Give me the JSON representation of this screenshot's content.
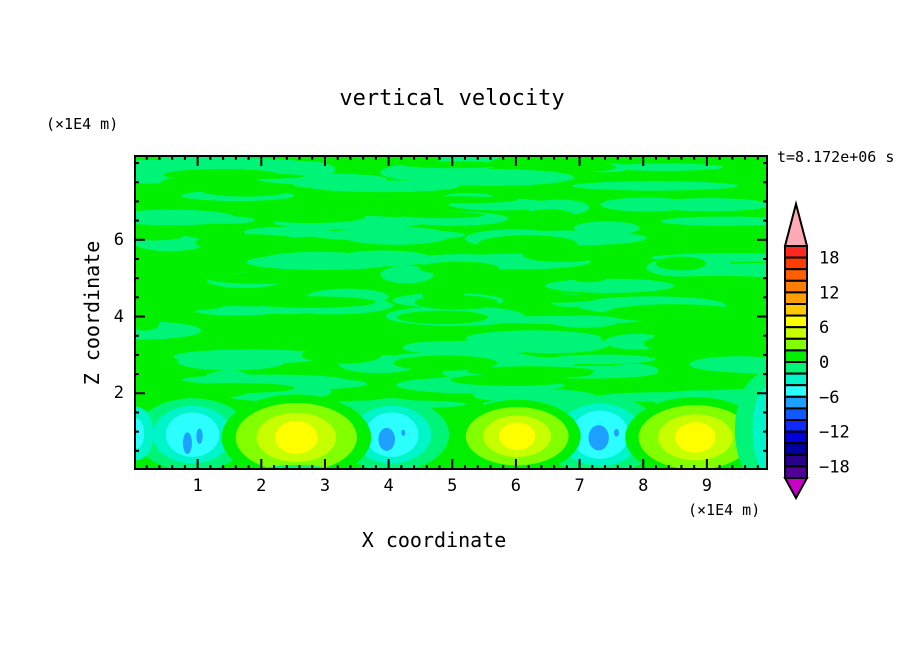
{
  "title": "vertical velocity",
  "time_label": "t=8.172e+06 s",
  "axes": {
    "x": {
      "label": "X coordinate",
      "unit": "(×1E4 m)",
      "min": 0,
      "max": 9.96,
      "major_ticks": [
        1,
        2,
        3,
        4,
        5,
        6,
        7,
        8,
        9
      ],
      "minor_step": 0.2
    },
    "y": {
      "label": "Z coordinate",
      "unit": "(×1E4 m)",
      "min": 0,
      "max": 8.21,
      "major_ticks": [
        2,
        4,
        6
      ],
      "minor_step": 0.5
    }
  },
  "colorbar": {
    "min": -20,
    "max": 20,
    "band_size": 2,
    "tick_values": [
      18,
      12,
      6,
      0,
      -6,
      -12,
      -18
    ],
    "tick_labels": [
      "18",
      "12",
      "6",
      "0",
      "−6",
      "−12",
      "−18"
    ],
    "colors": [
      "#500096",
      "#28008C",
      "#0000A0",
      "#0000DC",
      "#0F28FF",
      "#0F5AFF",
      "#1EA0FF",
      "#2BFFFF",
      "#00F5C8",
      "#00F578",
      "#00F000",
      "#82FF00",
      "#C8FF00",
      "#FFFF00",
      "#FFC800",
      "#FFA000",
      "#FF7D00",
      "#FF5F00",
      "#FF3C00",
      "#FF281E"
    ],
    "over_color": "#FFAAB4",
    "under_color": "#C800C8"
  },
  "chart_data": {
    "type": "heatmap",
    "title": "vertical velocity",
    "xlabel": "X coordinate",
    "ylabel": "Z coordinate",
    "x_unit": "(×1E4 m)",
    "y_unit": "(×1E4 m)",
    "time": "t=8.172e+06 s",
    "xlim": [
      0,
      9.96
    ],
    "ylim": [
      0,
      8.21
    ],
    "contour_interval": 2,
    "background_band": [
      -2,
      2
    ],
    "field": {
      "updrafts": [
        {
          "x": 2.55,
          "z": 0.85,
          "scale": 1.12,
          "peak_band": [
            6,
            8
          ]
        },
        {
          "x": 6.02,
          "z": 0.88,
          "scale": 0.95,
          "peak_band": [
            6,
            8
          ]
        },
        {
          "x": 8.82,
          "z": 0.85,
          "scale": 1.05,
          "peak_band": [
            6,
            8
          ]
        }
      ],
      "downdrafts": [
        {
          "x": 0.92,
          "z": 0.92,
          "scale": 1.0,
          "min_band": [
            -8,
            -6
          ],
          "spots": [
            [
              0.84,
              0.7,
              0.07,
              0.28
            ],
            [
              1.03,
              0.88,
              0.05,
              0.2
            ]
          ]
        },
        {
          "x": 4.05,
          "z": 0.92,
          "scale": 1.0,
          "min_band": [
            -8,
            -6
          ],
          "spots": [
            [
              3.97,
              0.8,
              0.13,
              0.3
            ],
            [
              4.23,
              0.97,
              0.03,
              0.08
            ]
          ]
        },
        {
          "x": 7.32,
          "z": 0.92,
          "scale": 1.08,
          "min_band": [
            -8,
            -6
          ],
          "spots": [
            [
              7.3,
              0.84,
              0.16,
              0.33
            ],
            [
              7.58,
              0.97,
              0.04,
              0.1
            ]
          ]
        }
      ],
      "edge_cells": [
        {
          "x": 0.03,
          "z": 0.95,
          "rings": [
            {
              "band": [
                -4,
                -2
              ],
              "rx": 0.28,
              "rz": 0.7
            },
            {
              "band": [
                -6,
                -4
              ],
              "rx": 0.13,
              "rz": 0.4
            }
          ]
        },
        {
          "x": 9.94,
          "z": 1.05,
          "rings": [
            {
              "band": [
                -2,
                0
              ],
              "rx": 0.5,
              "rz": 1.5
            },
            {
              "band": [
                -4,
                -2
              ],
              "rx": 0.22,
              "rz": 1.1
            }
          ]
        }
      ]
    }
  }
}
